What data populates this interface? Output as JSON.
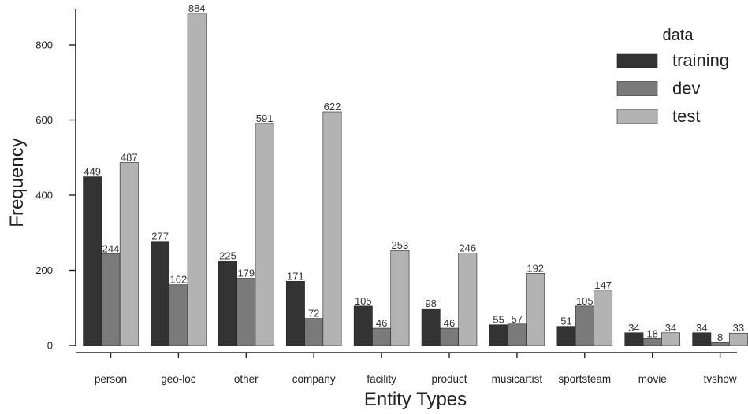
{
  "chart_data": {
    "type": "bar",
    "xlabel": "Entity Types",
    "ylabel": "Frequency",
    "ylim": [
      0,
      900
    ],
    "yticks": [
      0,
      200,
      400,
      600,
      800
    ],
    "grid": false,
    "legend_position": "top-right",
    "legend_title": "data",
    "categories": [
      "person",
      "geo-loc",
      "other",
      "company",
      "facility",
      "product",
      "musicartist",
      "sportsteam",
      "movie",
      "tvshow"
    ],
    "series": [
      {
        "name": "training",
        "color": "#333333",
        "values": [
          449,
          277,
          225,
          171,
          105,
          98,
          55,
          51,
          34,
          34
        ]
      },
      {
        "name": "dev",
        "color": "#7a7a7a",
        "values": [
          244,
          162,
          179,
          72,
          46,
          46,
          57,
          105,
          18,
          8
        ]
      },
      {
        "name": "test",
        "color": "#b3b3b3",
        "values": [
          487,
          884,
          591,
          622,
          253,
          246,
          192,
          147,
          34,
          33
        ]
      }
    ]
  }
}
